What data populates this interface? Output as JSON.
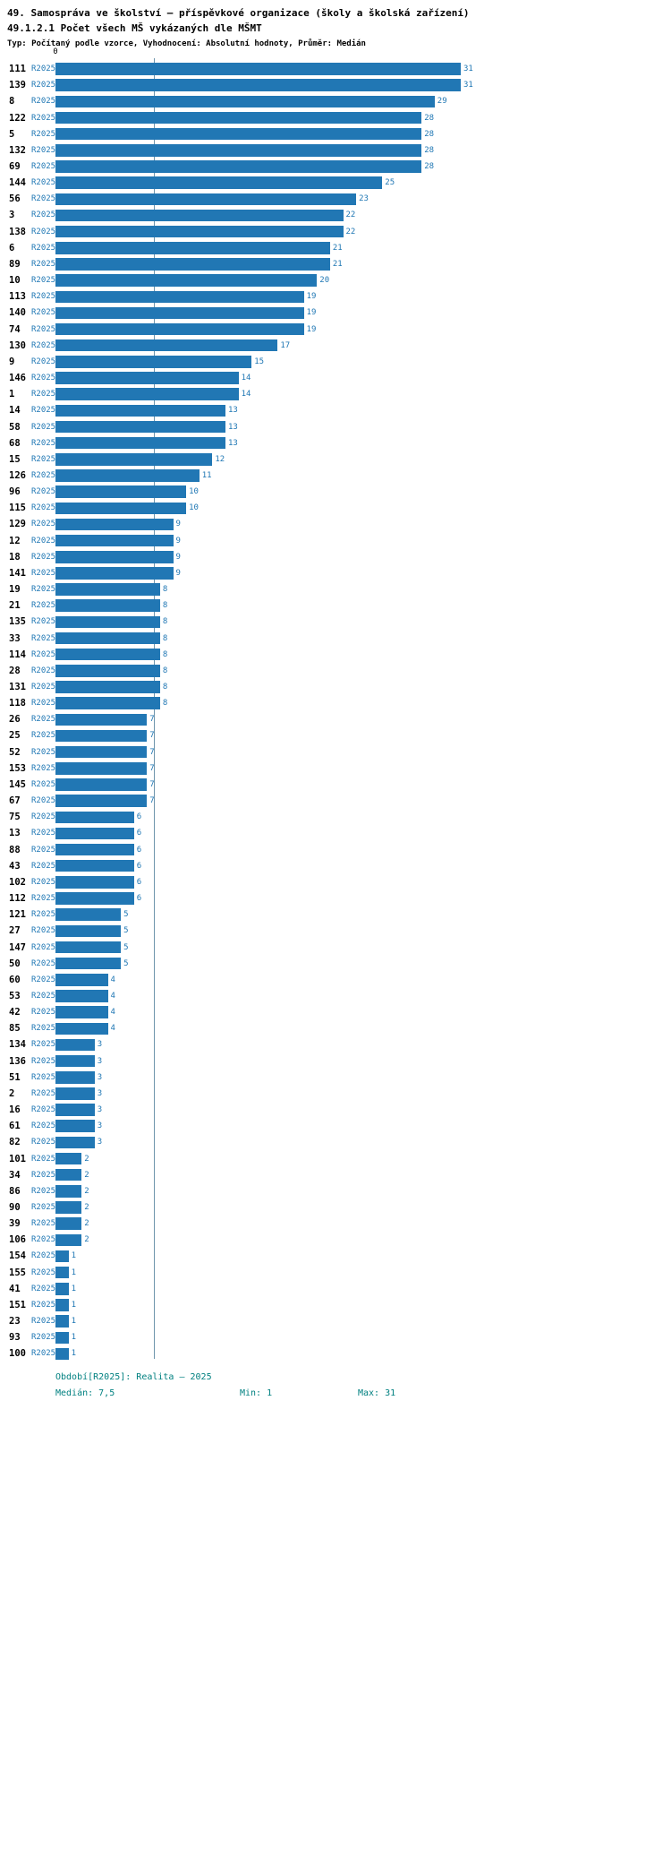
{
  "chart_data": {
    "type": "bar",
    "orientation": "horizontal",
    "title": "49. Samospráva ve školství – příspěvkové organizace (školy a školská zařízení)",
    "subtitle": "49.1.2.1 Počet všech MŠ vykázaných dle MŠMT",
    "note": "Typ: Počítaný podle vzorce, Vyhodnocení: Absolutní hodnoty, Průměr: Medián",
    "series_label": "R2025",
    "zero_label": "0",
    "xlim": [
      0,
      31
    ],
    "median": 7.5,
    "grid": "off",
    "legend": "none",
    "categories": [
      "111",
      "139",
      "8",
      "122",
      "5",
      "132",
      "69",
      "144",
      "56",
      "3",
      "138",
      "6",
      "89",
      "10",
      "113",
      "140",
      "74",
      "130",
      "9",
      "146",
      "1",
      "14",
      "58",
      "68",
      "15",
      "126",
      "96",
      "115",
      "129",
      "12",
      "18",
      "141",
      "19",
      "21",
      "135",
      "33",
      "114",
      "28",
      "131",
      "118",
      "26",
      "25",
      "52",
      "153",
      "145",
      "67",
      "75",
      "13",
      "88",
      "43",
      "102",
      "112",
      "121",
      "27",
      "147",
      "50",
      "60",
      "53",
      "42",
      "85",
      "134",
      "136",
      "51",
      "2",
      "16",
      "61",
      "82",
      "101",
      "34",
      "86",
      "90",
      "39",
      "106",
      "154",
      "155",
      "41",
      "151",
      "23",
      "93",
      "100"
    ],
    "values": [
      31,
      31,
      29,
      28,
      28,
      28,
      28,
      25,
      23,
      22,
      22,
      21,
      21,
      20,
      19,
      19,
      19,
      17,
      15,
      14,
      14,
      13,
      13,
      13,
      12,
      11,
      10,
      10,
      9,
      9,
      9,
      9,
      8,
      8,
      8,
      8,
      8,
      8,
      8,
      8,
      7,
      7,
      7,
      7,
      7,
      7,
      6,
      6,
      6,
      6,
      6,
      6,
      5,
      5,
      5,
      5,
      4,
      4,
      4,
      4,
      3,
      3,
      3,
      3,
      3,
      3,
      3,
      2,
      2,
      2,
      2,
      2,
      2,
      1,
      1,
      1,
      1,
      1,
      1,
      1
    ]
  },
  "footer": {
    "period": "Období[R2025]: Realita – 2025",
    "median_label": "Medián: 7,5",
    "min_label": "Min: 1",
    "max_label": "Max: 31"
  },
  "colors": {
    "bar": "#2177b4",
    "series_label": "#1f77b4",
    "value_label": "#1f77b4",
    "median_line": "#7096ac",
    "footer_text": "#008080",
    "title_text": "#000000"
  }
}
